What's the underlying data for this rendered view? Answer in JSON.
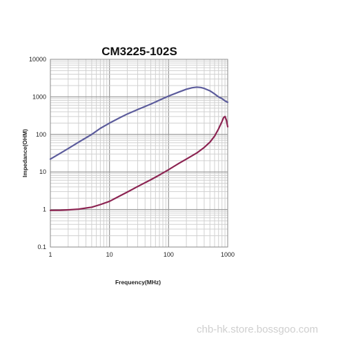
{
  "watermark": "chb-hk.store.bossgoo.com",
  "chart_data": {
    "type": "line",
    "title": "CM3225-102S",
    "xlabel": "Frequency(MHz)",
    "ylabel": "Impedance(OHM)",
    "xscale": "log",
    "yscale": "log",
    "xlim": [
      1,
      1000
    ],
    "ylim": [
      0.1,
      10000
    ],
    "xticks": [
      "1",
      "10",
      "100",
      "1000"
    ],
    "yticks": [
      "0.1",
      "1",
      "10",
      "100",
      "1000",
      "10000"
    ],
    "grid": true,
    "series": [
      {
        "color": "#5c5c9c",
        "x": [
          1,
          1.5,
          2,
          3,
          5,
          7,
          10,
          15,
          20,
          30,
          50,
          70,
          100,
          150,
          200,
          250,
          300,
          350,
          400,
          500,
          600,
          700,
          800,
          900,
          1000
        ],
        "y": [
          22,
          32,
          42,
          62,
          100,
          145,
          200,
          280,
          350,
          460,
          640,
          820,
          1050,
          1350,
          1600,
          1750,
          1820,
          1780,
          1680,
          1450,
          1200,
          1000,
          900,
          780,
          720
        ]
      },
      {
        "color": "#8c2452",
        "x": [
          1,
          1.5,
          2,
          3,
          5,
          7,
          10,
          15,
          20,
          30,
          50,
          70,
          100,
          150,
          200,
          300,
          400,
          500,
          600,
          700,
          800,
          850,
          900,
          950,
          1000
        ],
        "y": [
          0.95,
          0.96,
          0.98,
          1.02,
          1.15,
          1.35,
          1.65,
          2.3,
          2.9,
          4.1,
          6.2,
          8.3,
          11.5,
          17,
          22,
          32,
          45,
          62,
          90,
          140,
          220,
          280,
          300,
          240,
          160
        ]
      }
    ]
  }
}
